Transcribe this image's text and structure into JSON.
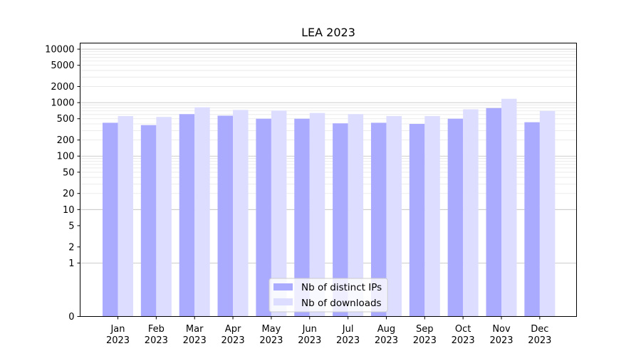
{
  "chart_data": {
    "type": "bar",
    "title": "LEA 2023",
    "xlabel": "",
    "ylabel": "",
    "yscale": "symlog",
    "ylim": [
      0,
      13000
    ],
    "yticks": [
      {
        "value": 0,
        "label": "0"
      },
      {
        "value": 1,
        "label": "1"
      },
      {
        "value": 2,
        "label": "2"
      },
      {
        "value": 5,
        "label": "5"
      },
      {
        "value": 10,
        "label": "10"
      },
      {
        "value": 20,
        "label": "20"
      },
      {
        "value": 50,
        "label": "50"
      },
      {
        "value": 100,
        "label": "100"
      },
      {
        "value": 200,
        "label": "200"
      },
      {
        "value": 500,
        "label": "500"
      },
      {
        "value": 1000,
        "label": "1000"
      },
      {
        "value": 2000,
        "label": "2000"
      },
      {
        "value": 5000,
        "label": "5000"
      },
      {
        "value": 10000,
        "label": "10000"
      }
    ],
    "categories": [
      {
        "month": "Jan",
        "year": "2023"
      },
      {
        "month": "Feb",
        "year": "2023"
      },
      {
        "month": "Mar",
        "year": "2023"
      },
      {
        "month": "Apr",
        "year": "2023"
      },
      {
        "month": "May",
        "year": "2023"
      },
      {
        "month": "Jun",
        "year": "2023"
      },
      {
        "month": "Jul",
        "year": "2023"
      },
      {
        "month": "Aug",
        "year": "2023"
      },
      {
        "month": "Sep",
        "year": "2023"
      },
      {
        "month": "Oct",
        "year": "2023"
      },
      {
        "month": "Nov",
        "year": "2023"
      },
      {
        "month": "Dec",
        "year": "2023"
      }
    ],
    "series": [
      {
        "name": "Nb of distinct IPs",
        "color": "#aaaaff",
        "values": [
          420,
          380,
          610,
          570,
          500,
          500,
          410,
          420,
          400,
          500,
          790,
          430
        ]
      },
      {
        "name": "Nb of downloads",
        "color": "#ddddff",
        "values": [
          560,
          540,
          820,
          730,
          710,
          640,
          610,
          560,
          560,
          750,
          1180,
          700
        ]
      }
    ],
    "grid": true,
    "legend_position": "lower-center"
  }
}
